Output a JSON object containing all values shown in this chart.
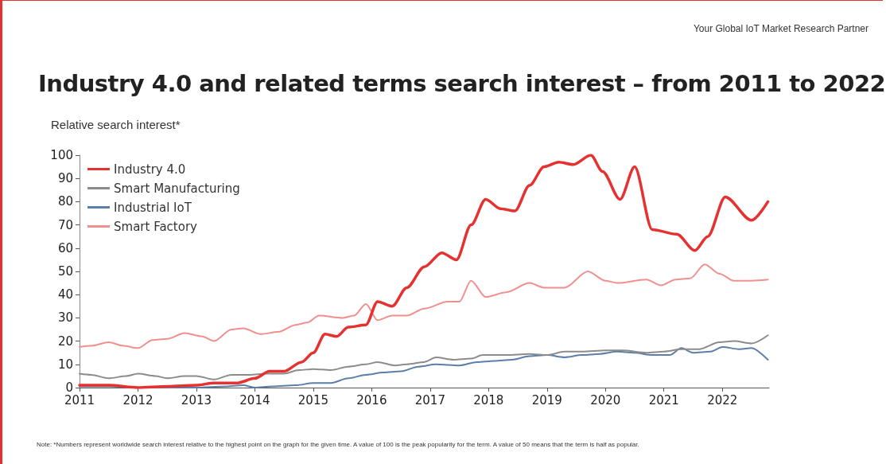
{
  "chart_data": {
    "type": "line",
    "title": "Industry 4.0 and related terms search interest – from 2011 to 2022",
    "ylabel": "Relative search interest*",
    "annotations": [
      "Your Global IoT Market Research Partner",
      "Note: *Numbers represent worldwide search interest relative to the highest point on the graph for the given time. A value of 100 is the peak popularity for the term. A value of 50 means that the term is half as popular."
    ],
    "xlim": [
      2011,
      2022.8
    ],
    "xticks": [
      2011,
      2012,
      2013,
      2014,
      2015,
      2016,
      2017,
      2018,
      2019,
      2020,
      2021,
      2022
    ],
    "ylim": [
      0,
      100
    ],
    "yticks": [
      0,
      10,
      20,
      30,
      40,
      50,
      60,
      70,
      80,
      90,
      100
    ],
    "grid": false,
    "legend": "top left",
    "marker": "none",
    "line_style": "solid",
    "series": [
      {
        "name": "Industry 4.0",
        "color": "#e5312f",
        "x": [
          2011,
          2011.5,
          2012,
          2012.5,
          2013,
          2013.3,
          2013.7,
          2014,
          2014.25,
          2014.5,
          2014.8,
          2015,
          2015.2,
          2015.4,
          2015.6,
          2015.9,
          2016.1,
          2016.35,
          2016.6,
          2016.9,
          2017.2,
          2017.45,
          2017.7,
          2017.95,
          2018.2,
          2018.45,
          2018.7,
          2018.95,
          2019.2,
          2019.45,
          2019.75,
          2019.95,
          2020.25,
          2020.5,
          2020.8,
          2021.22,
          2021.53,
          2021.75,
          2022.05,
          2022.5,
          2022.78
        ],
        "values": [
          1,
          1,
          0,
          0.5,
          1,
          2,
          2,
          4,
          7,
          7,
          11,
          15,
          23,
          22,
          26,
          27,
          37,
          35,
          43,
          52,
          58,
          55,
          70,
          81,
          77,
          76,
          87,
          95,
          97,
          96,
          100,
          93,
          81,
          95,
          68,
          66,
          59,
          65,
          82,
          72,
          80
        ]
      },
      {
        "name": "Smart Manufacturing",
        "color": "#8c8c8c",
        "x": [
          2011,
          2011.2,
          2011.5,
          2011.8,
          2012,
          2012.3,
          2012.5,
          2012.8,
          2013,
          2013.3,
          2013.6,
          2013.9,
          2014.2,
          2014.5,
          2014.75,
          2015,
          2015.3,
          2015.6,
          2015.9,
          2016.1,
          2016.4,
          2016.6,
          2016.9,
          2017.1,
          2017.4,
          2017.7,
          2017.9,
          2018.3,
          2018.7,
          2019,
          2019.3,
          2019.6,
          2020,
          2020.3,
          2020.7,
          2021,
          2021.3,
          2021.6,
          2021.95,
          2022.2,
          2022.5,
          2022.78
        ],
        "values": [
          6,
          5.5,
          4,
          5,
          6,
          5,
          4,
          5,
          5,
          3.5,
          5.5,
          5.5,
          6,
          6,
          7.5,
          8,
          7.5,
          9,
          10,
          11,
          9.5,
          10,
          11,
          13,
          12,
          12.5,
          14,
          14,
          14.5,
          14,
          15.5,
          15.5,
          16,
          16,
          15,
          15.5,
          16.5,
          16.5,
          19.5,
          20,
          19,
          22.5
        ]
      },
      {
        "name": "Industrial IoT",
        "color": "#5b7fa8",
        "x": [
          2011,
          2011.5,
          2012,
          2012.5,
          2013,
          2013.5,
          2013.8,
          2014,
          2014.3,
          2014.7,
          2015,
          2015.3,
          2015.6,
          2015.9,
          2016.2,
          2016.5,
          2016.8,
          2017.1,
          2017.5,
          2017.8,
          2018.1,
          2018.4,
          2018.7,
          2019,
          2019.3,
          2019.6,
          2019.9,
          2020.2,
          2020.5,
          2020.8,
          2021.1,
          2021.3,
          2021.5,
          2021.8,
          2022,
          2022.3,
          2022.5,
          2022.78
        ],
        "values": [
          0.5,
          0.5,
          0,
          0,
          0,
          0.5,
          1,
          0,
          0.5,
          1,
          2,
          2,
          4,
          5.5,
          6.5,
          7,
          9,
          10,
          9.5,
          11,
          11.5,
          12,
          13.5,
          14,
          13,
          14,
          14.5,
          15.5,
          15,
          14,
          14,
          17,
          15,
          15.5,
          17.5,
          16.5,
          17,
          12
        ]
      },
      {
        "name": "Smart Factory",
        "color": "#f0908e",
        "x": [
          2011,
          2011.2,
          2011.5,
          2011.75,
          2012,
          2012.25,
          2012.5,
          2012.8,
          2013.1,
          2013.3,
          2013.6,
          2013.8,
          2014.1,
          2014.4,
          2014.7,
          2014.9,
          2015.1,
          2015.5,
          2015.7,
          2015.9,
          2016.1,
          2016.35,
          2016.6,
          2016.9,
          2017.3,
          2017.5,
          2017.7,
          2017.95,
          2018.3,
          2018.7,
          2018.95,
          2019.3,
          2019.7,
          2020,
          2020.2,
          2020.7,
          2020.95,
          2021.2,
          2021.45,
          2021.7,
          2021.95,
          2022.2,
          2022.5,
          2022.78
        ],
        "values": [
          17.5,
          18,
          19.5,
          18,
          17,
          20.5,
          21,
          23.5,
          22,
          20,
          25,
          25.5,
          23,
          24,
          27,
          28,
          31,
          30,
          31,
          36,
          29,
          31,
          31,
          34,
          37,
          37,
          46,
          39,
          41,
          45,
          43,
          43,
          50,
          46,
          45,
          46.5,
          44,
          46.5,
          47,
          53,
          49,
          46,
          46,
          46.5
        ]
      }
    ]
  }
}
